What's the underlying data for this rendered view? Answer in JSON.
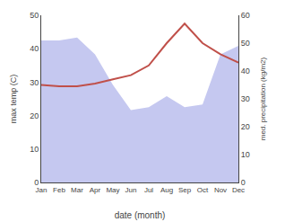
{
  "chart_data": {
    "type": "line",
    "categories": [
      "Jan",
      "Feb",
      "Mar",
      "Apr",
      "May",
      "Jun",
      "Jul",
      "Aug",
      "Sep",
      "Oct",
      "Nov",
      "Dec"
    ],
    "series": [
      {
        "type": "area",
        "color": "#c5c8f0",
        "axis": "y2",
        "values": [
          51,
          51,
          52,
          46,
          35,
          26,
          27,
          31,
          27,
          28,
          46,
          49
        ]
      },
      {
        "type": "line",
        "color": "#c0504a",
        "axis": "y2",
        "values": [
          35.0,
          34.5,
          34.5,
          35.5,
          37.0,
          38.5,
          42.0,
          50.0,
          57.0,
          50.0,
          46.0,
          43.0
        ]
      }
    ],
    "xlabel": "date (month)",
    "ylabel": "max temp (C)",
    "y2label": "med. precipitation (kg/m2)",
    "ylim": [
      0,
      50
    ],
    "yticks": [
      0,
      10,
      20,
      30,
      40,
      50
    ],
    "y2lim": [
      0,
      60
    ],
    "y2ticks": [
      0,
      10,
      20,
      30,
      40,
      50,
      60
    ],
    "grid": false
  }
}
